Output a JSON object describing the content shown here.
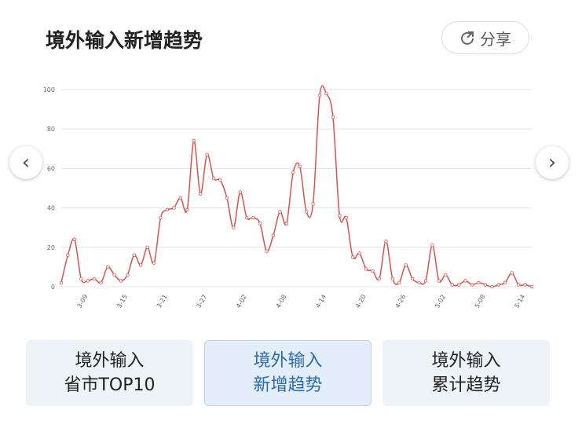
{
  "header": {
    "title": "境外输入新增趋势",
    "share": "分享"
  },
  "chart_data": {
    "type": "line",
    "categories": [
      null,
      null,
      null,
      null,
      "3-09",
      null,
      null,
      null,
      null,
      null,
      "3-15",
      null,
      null,
      null,
      null,
      null,
      "3-21",
      null,
      null,
      null,
      null,
      null,
      "3-27",
      null,
      null,
      null,
      null,
      null,
      "4-02",
      null,
      null,
      null,
      null,
      null,
      "4-08",
      null,
      null,
      null,
      null,
      null,
      "4-14",
      null,
      null,
      null,
      null,
      null,
      "4-20",
      null,
      null,
      null,
      null,
      null,
      "4-26",
      null,
      null,
      null,
      null,
      null,
      "5-02",
      null,
      null,
      null,
      null,
      null,
      "5-08",
      null,
      null,
      null,
      null,
      null,
      "5-14",
      null
    ],
    "series": [
      {
        "name": "境外输入新增",
        "color": "#d9534f",
        "values": [
          2,
          16,
          24,
          4,
          3,
          4,
          2,
          10,
          6,
          3,
          6,
          16,
          11,
          20,
          12,
          35,
          39,
          40,
          45,
          39,
          74,
          47,
          67,
          55,
          54,
          45,
          30,
          48,
          35,
          35,
          32,
          18,
          26,
          38,
          32,
          58,
          61,
          38,
          42,
          97,
          98,
          86,
          36,
          35,
          15,
          17,
          9,
          8,
          4,
          23,
          4,
          2,
          11,
          4,
          2,
          3,
          21,
          3,
          6,
          1,
          1,
          3,
          1,
          2,
          1,
          0,
          1,
          2,
          7,
          1,
          1,
          0
        ]
      }
    ],
    "ylim": [
      0,
      100
    ],
    "yticks": [
      0,
      20,
      40,
      60,
      80,
      100
    ],
    "grid": true
  },
  "tabs": [
    {
      "line1": "境外输入",
      "line2": "省市TOP10"
    },
    {
      "line1": "境外输入",
      "line2": "新增趋势"
    },
    {
      "line1": "境外输入",
      "line2": "累计趋势"
    }
  ]
}
